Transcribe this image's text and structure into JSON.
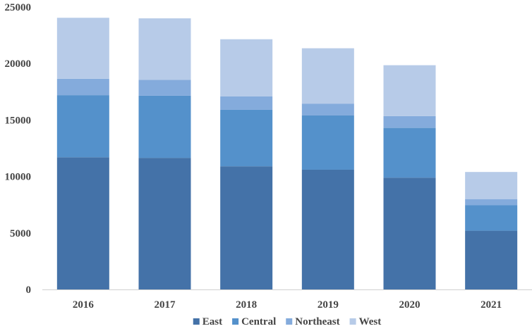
{
  "chart_data": {
    "type": "bar",
    "stacked": true,
    "title": "",
    "xlabel": "",
    "ylabel": "",
    "categories": [
      "2016",
      "2017",
      "2018",
      "2019",
      "2020",
      "2021"
    ],
    "series": [
      {
        "name": "East",
        "color": "#4472a8",
        "values": [
          11700,
          11650,
          10900,
          10600,
          9900,
          5200
        ]
      },
      {
        "name": "Central",
        "color": "#5491cb",
        "values": [
          5500,
          5500,
          5000,
          4800,
          4400,
          2250
        ]
      },
      {
        "name": "Northeast",
        "color": "#84abdc",
        "values": [
          1450,
          1400,
          1200,
          1050,
          1050,
          550
        ]
      },
      {
        "name": "West",
        "color": "#b7cbe8",
        "values": [
          5400,
          5450,
          5050,
          4900,
          4500,
          2400
        ]
      }
    ],
    "ylim": [
      0,
      25000
    ],
    "yticks": [
      0,
      5000,
      10000,
      15000,
      20000,
      25000
    ],
    "grid": false,
    "legend_position": "bottom"
  }
}
